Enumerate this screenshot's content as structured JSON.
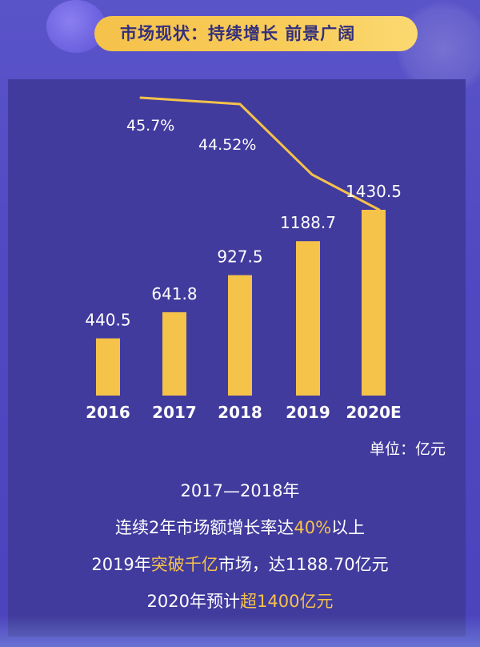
{
  "title": "市场现状：持续增长 前景广阔",
  "unit_label": "单位：亿元",
  "chart_data": {
    "type": "bar",
    "categories": [
      "2016",
      "2017",
      "2018",
      "2019",
      "2020E"
    ],
    "values": [
      440.5,
      641.8,
      927.5,
      1188.7,
      1430.5
    ],
    "value_labels": [
      "440.5",
      "641.8",
      "927.5",
      "1188.7",
      "1430.5"
    ],
    "growth_line": {
      "type": "line",
      "labels": [
        "45.7%",
        "44.52%"
      ]
    },
    "ylim": [
      0,
      1430.5
    ],
    "colors": {
      "bar": "#f5c24a",
      "line": "#f5c24a",
      "text": "#ffffff"
    }
  },
  "notes": {
    "line1": "2017—2018年",
    "line2": {
      "pre": "连续2年市场额增长率达",
      "highlight": "40%",
      "post": "以上"
    },
    "line3": {
      "pre": "2019年",
      "highlight": "突破千亿",
      "post": "市场，达1188.70亿元"
    },
    "line4": {
      "pre": "2020年预计",
      "highlight": "超1400亿元",
      "post": ""
    }
  }
}
